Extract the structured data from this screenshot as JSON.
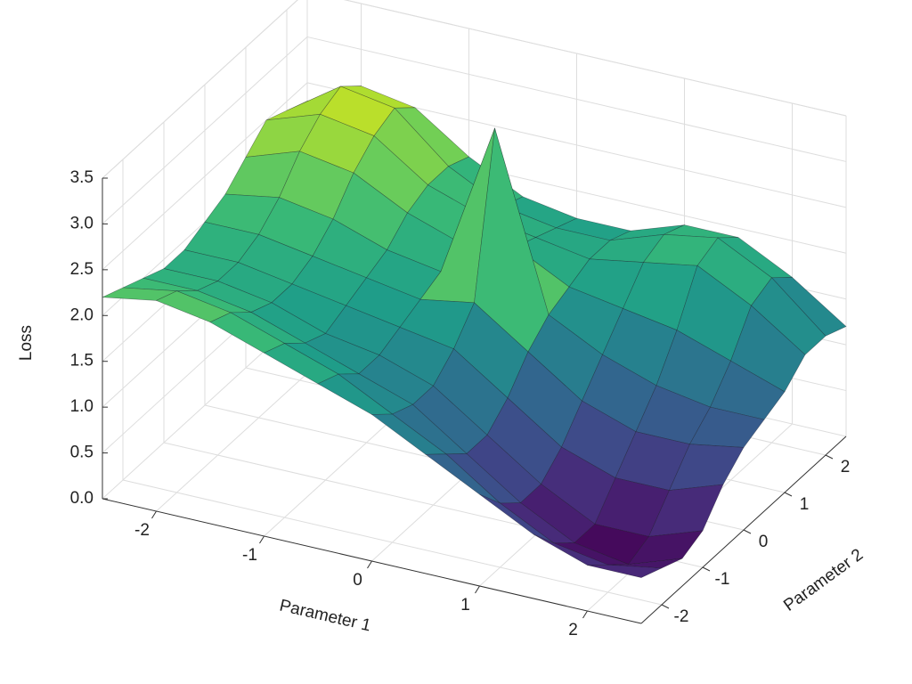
{
  "chart_data": {
    "type": "surface",
    "xlabel": "Parameter 1",
    "ylabel": "Parameter 2",
    "zlabel": "Loss",
    "x": [
      -2.5,
      -2,
      -1.5,
      -1,
      -0.5,
      0,
      0.5,
      1,
      1.5,
      2,
      2.5
    ],
    "y": [
      -2.5,
      -2,
      -1.5,
      -1,
      -0.5,
      0,
      0.5,
      1,
      1.5,
      2,
      2.5
    ],
    "z": [
      [
        2.2,
        2.3,
        2.2,
        2.0,
        1.8,
        1.6,
        1.3,
        1.0,
        0.7,
        0.5,
        0.5
      ],
      [
        2.1,
        2.2,
        2.1,
        1.9,
        1.7,
        1.4,
        1.1,
        0.7,
        0.4,
        0.3,
        0.4
      ],
      [
        2.0,
        2.0,
        1.9,
        1.7,
        1.5,
        1.3,
        0.9,
        0.5,
        0.2,
        0.1,
        0.3
      ],
      [
        1.9,
        1.9,
        1.8,
        1.6,
        1.5,
        1.3,
        0.9,
        0.5,
        0.2,
        0.2,
        0.4
      ],
      [
        1.9,
        1.9,
        1.8,
        1.7,
        1.6,
        1.5,
        1.1,
        0.7,
        0.5,
        0.5,
        0.7
      ],
      [
        2.0,
        2.0,
        1.9,
        1.8,
        1.7,
        1.8,
        1.4,
        1.0,
        0.8,
        0.8,
        0.9
      ],
      [
        2.1,
        2.2,
        2.1,
        1.9,
        1.8,
        3.5,
        1.6,
        1.3,
        1.1,
        1.0,
        1.0
      ],
      [
        2.3,
        2.5,
        2.4,
        2.1,
        1.9,
        2.0,
        1.7,
        1.6,
        1.5,
        1.3,
        1.1
      ],
      [
        2.5,
        2.7,
        2.6,
        2.2,
        2.0,
        1.9,
        1.8,
        1.9,
        2.0,
        1.7,
        1.3
      ],
      [
        2.4,
        2.8,
        2.7,
        2.2,
        1.9,
        1.8,
        1.8,
        2.0,
        2.1,
        1.8,
        1.3
      ],
      [
        2.3,
        2.6,
        2.5,
        2.1,
        1.8,
        1.7,
        1.7,
        1.9,
        1.9,
        1.6,
        1.2
      ]
    ],
    "xlim": [
      -2.5,
      2.5
    ],
    "ylim": [
      -2.5,
      2.5
    ],
    "zlim": [
      0,
      3.5
    ],
    "xticks": [
      -2,
      -1,
      0,
      1,
      2
    ],
    "yticks": [
      -2,
      -1,
      0,
      1,
      2
    ],
    "zticks": [
      {
        "value": 0,
        "label": "0.0"
      },
      0.5,
      {
        "value": 1,
        "label": "1.0"
      },
      1.5,
      {
        "value": 2,
        "label": "2.0"
      },
      2.5,
      {
        "value": 3,
        "label": "3.0"
      },
      3.5
    ],
    "colormap": "viridis",
    "grid": true
  }
}
